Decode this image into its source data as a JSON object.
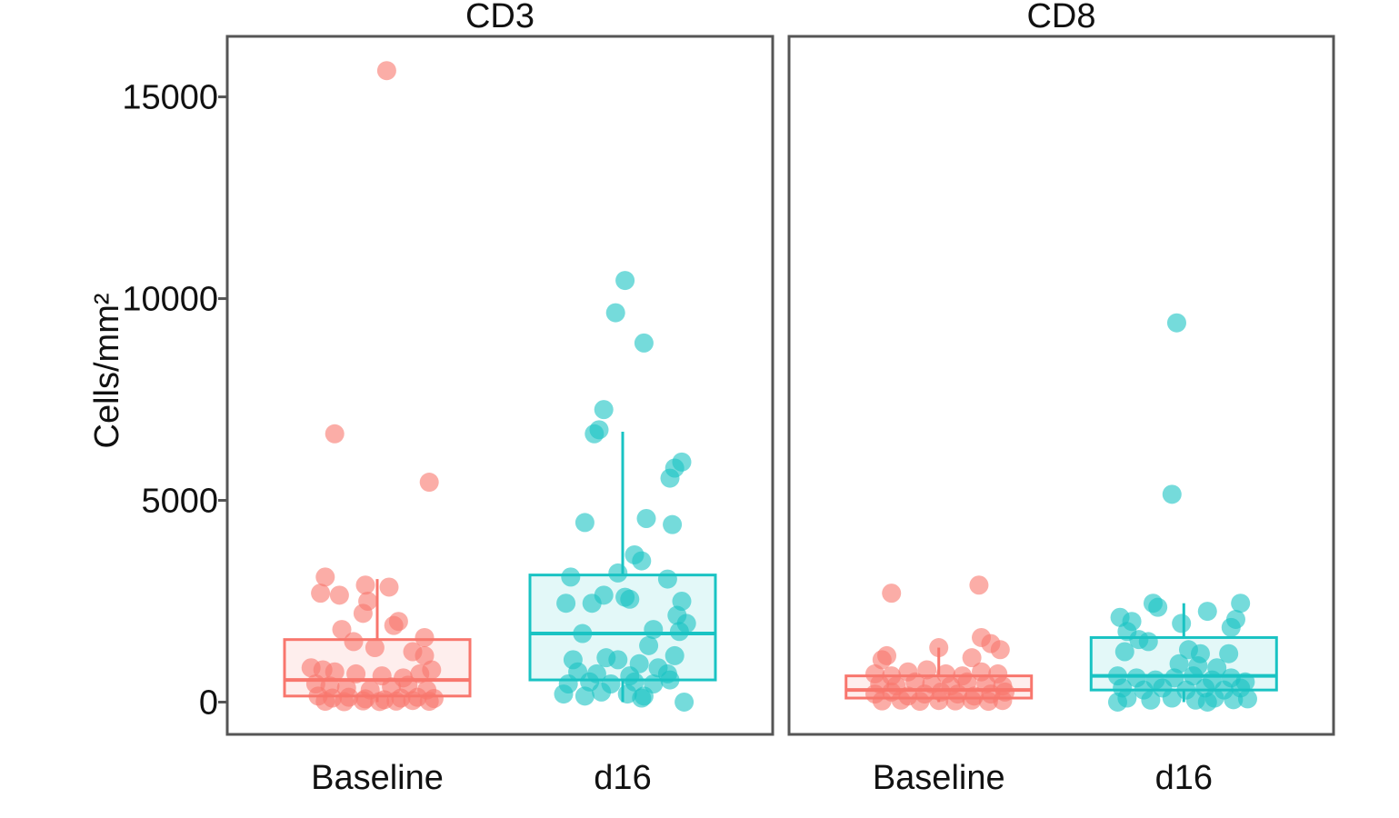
{
  "chart_data": {
    "type": "box",
    "ylabel": "Cells/mm²",
    "ylim": [
      -800,
      16500
    ],
    "yticks": [
      0,
      5000,
      10000,
      15000
    ],
    "ytick_labels": [
      "0",
      "5000",
      "10000",
      "15000"
    ],
    "categories": [
      "Baseline",
      "d16"
    ],
    "colors": {
      "Baseline": "#f8766d",
      "d16": "#19c3c3"
    },
    "panels": [
      {
        "title": "CD3",
        "groups": [
          {
            "name": "Baseline",
            "box": {
              "q1": 150,
              "median": 550,
              "q3": 1550,
              "whisker_low": 0,
              "whisker_high": 3050
            },
            "points": [
              {
                "x": 0.04,
                "y": 15650
              },
              {
                "x": -0.18,
                "y": 6650
              },
              {
                "x": 0.22,
                "y": 5450
              },
              {
                "x": -0.22,
                "y": 3100
              },
              {
                "x": -0.24,
                "y": 2700
              },
              {
                "x": -0.16,
                "y": 2650
              },
              {
                "x": -0.05,
                "y": 2900
              },
              {
                "x": 0.05,
                "y": 2850
              },
              {
                "x": -0.04,
                "y": 2500
              },
              {
                "x": -0.06,
                "y": 2200
              },
              {
                "x": 0.07,
                "y": 1900
              },
              {
                "x": 0.09,
                "y": 2000
              },
              {
                "x": -0.15,
                "y": 1800
              },
              {
                "x": 0.2,
                "y": 1600
              },
              {
                "x": -0.1,
                "y": 1500
              },
              {
                "x": -0.01,
                "y": 1350
              },
              {
                "x": 0.15,
                "y": 1250
              },
              {
                "x": 0.2,
                "y": 1150
              },
              {
                "x": -0.28,
                "y": 850
              },
              {
                "x": -0.23,
                "y": 800
              },
              {
                "x": -0.18,
                "y": 750
              },
              {
                "x": -0.09,
                "y": 700
              },
              {
                "x": 0.02,
                "y": 650
              },
              {
                "x": 0.11,
                "y": 600
              },
              {
                "x": 0.18,
                "y": 700
              },
              {
                "x": 0.23,
                "y": 800
              },
              {
                "x": -0.26,
                "y": 450
              },
              {
                "x": -0.2,
                "y": 400
              },
              {
                "x": -0.13,
                "y": 350
              },
              {
                "x": -0.03,
                "y": 300
              },
              {
                "x": 0.06,
                "y": 380
              },
              {
                "x": 0.13,
                "y": 420
              },
              {
                "x": 0.21,
                "y": 300
              },
              {
                "x": -0.25,
                "y": 150
              },
              {
                "x": -0.19,
                "y": 100
              },
              {
                "x": -0.12,
                "y": 120
              },
              {
                "x": -0.05,
                "y": 80
              },
              {
                "x": 0.03,
                "y": 60
              },
              {
                "x": 0.1,
                "y": 100
              },
              {
                "x": 0.17,
                "y": 120
              },
              {
                "x": 0.24,
                "y": 90
              },
              {
                "x": -0.22,
                "y": 20
              },
              {
                "x": -0.14,
                "y": 10
              },
              {
                "x": -0.06,
                "y": 30
              },
              {
                "x": 0.01,
                "y": 15
              },
              {
                "x": 0.08,
                "y": 25
              },
              {
                "x": 0.15,
                "y": 40
              },
              {
                "x": 0.22,
                "y": 20
              }
            ]
          },
          {
            "name": "d16",
            "box": {
              "q1": 550,
              "median": 1700,
              "q3": 3150,
              "whisker_low": 0,
              "whisker_high": 6700
            },
            "points": [
              {
                "x": 0.01,
                "y": 10450
              },
              {
                "x": -0.03,
                "y": 9650
              },
              {
                "x": 0.09,
                "y": 8900
              },
              {
                "x": -0.08,
                "y": 7250
              },
              {
                "x": -0.12,
                "y": 6650
              },
              {
                "x": -0.1,
                "y": 6750
              },
              {
                "x": 0.25,
                "y": 5950
              },
              {
                "x": 0.22,
                "y": 5800
              },
              {
                "x": 0.2,
                "y": 5550
              },
              {
                "x": -0.16,
                "y": 4450
              },
              {
                "x": 0.1,
                "y": 4550
              },
              {
                "x": 0.21,
                "y": 4400
              },
              {
                "x": 0.05,
                "y": 3650
              },
              {
                "x": 0.08,
                "y": 3500
              },
              {
                "x": -0.02,
                "y": 3200
              },
              {
                "x": -0.22,
                "y": 3100
              },
              {
                "x": 0.19,
                "y": 3050
              },
              {
                "x": -0.08,
                "y": 2650
              },
              {
                "x": 0.01,
                "y": 2600
              },
              {
                "x": 0.03,
                "y": 2550
              },
              {
                "x": 0.25,
                "y": 2500
              },
              {
                "x": -0.24,
                "y": 2450
              },
              {
                "x": -0.13,
                "y": 2450
              },
              {
                "x": 0.23,
                "y": 2150
              },
              {
                "x": 0.27,
                "y": 1950
              },
              {
                "x": 0.24,
                "y": 1750
              },
              {
                "x": -0.17,
                "y": 1700
              },
              {
                "x": 0.13,
                "y": 1800
              },
              {
                "x": 0.11,
                "y": 1400
              },
              {
                "x": 0.22,
                "y": 1150
              },
              {
                "x": -0.21,
                "y": 1050
              },
              {
                "x": -0.07,
                "y": 1100
              },
              {
                "x": -0.02,
                "y": 1050
              },
              {
                "x": 0.07,
                "y": 950
              },
              {
                "x": 0.15,
                "y": 850
              },
              {
                "x": -0.19,
                "y": 750
              },
              {
                "x": -0.11,
                "y": 700
              },
              {
                "x": 0.03,
                "y": 650
              },
              {
                "x": 0.19,
                "y": 700
              },
              {
                "x": -0.23,
                "y": 450
              },
              {
                "x": -0.14,
                "y": 500
              },
              {
                "x": -0.05,
                "y": 450
              },
              {
                "x": 0.05,
                "y": 500
              },
              {
                "x": 0.13,
                "y": 450
              },
              {
                "x": 0.2,
                "y": 550
              },
              {
                "x": -0.25,
                "y": 200
              },
              {
                "x": -0.16,
                "y": 150
              },
              {
                "x": -0.09,
                "y": 250
              },
              {
                "x": 0.02,
                "y": 200
              },
              {
                "x": 0.09,
                "y": 150
              },
              {
                "x": 0.26,
                "y": 0
              },
              {
                "x": 0.08,
                "y": 100
              }
            ]
          }
        ]
      },
      {
        "title": "CD8",
        "groups": [
          {
            "name": "Baseline",
            "box": {
              "q1": 100,
              "median": 300,
              "q3": 650,
              "whisker_low": 0,
              "whisker_high": 1350
            },
            "points": [
              {
                "x": -0.2,
                "y": 2700
              },
              {
                "x": 0.17,
                "y": 2900
              },
              {
                "x": 0.18,
                "y": 1600
              },
              {
                "x": 0.22,
                "y": 1450
              },
              {
                "x": 0.26,
                "y": 1300
              },
              {
                "x": 0.0,
                "y": 1350
              },
              {
                "x": -0.22,
                "y": 1150
              },
              {
                "x": -0.24,
                "y": 1050
              },
              {
                "x": 0.14,
                "y": 1100
              },
              {
                "x": -0.27,
                "y": 700
              },
              {
                "x": -0.2,
                "y": 650
              },
              {
                "x": -0.13,
                "y": 750
              },
              {
                "x": -0.05,
                "y": 800
              },
              {
                "x": 0.03,
                "y": 700
              },
              {
                "x": 0.1,
                "y": 650
              },
              {
                "x": 0.18,
                "y": 750
              },
              {
                "x": 0.25,
                "y": 700
              },
              {
                "x": -0.25,
                "y": 450
              },
              {
                "x": -0.18,
                "y": 400
              },
              {
                "x": -0.1,
                "y": 500
              },
              {
                "x": -0.03,
                "y": 450
              },
              {
                "x": 0.05,
                "y": 400
              },
              {
                "x": 0.12,
                "y": 500
              },
              {
                "x": 0.2,
                "y": 450
              },
              {
                "x": 0.27,
                "y": 400
              },
              {
                "x": -0.27,
                "y": 200
              },
              {
                "x": -0.2,
                "y": 250
              },
              {
                "x": -0.13,
                "y": 150
              },
              {
                "x": -0.06,
                "y": 200
              },
              {
                "x": 0.01,
                "y": 250
              },
              {
                "x": 0.08,
                "y": 200
              },
              {
                "x": 0.15,
                "y": 150
              },
              {
                "x": 0.22,
                "y": 200
              },
              {
                "x": 0.28,
                "y": 250
              },
              {
                "x": -0.24,
                "y": 30
              },
              {
                "x": -0.16,
                "y": 50
              },
              {
                "x": -0.08,
                "y": 20
              },
              {
                "x": 0.0,
                "y": 40
              },
              {
                "x": 0.07,
                "y": 30
              },
              {
                "x": 0.14,
                "y": 50
              },
              {
                "x": 0.21,
                "y": 20
              },
              {
                "x": 0.27,
                "y": 40
              }
            ]
          },
          {
            "name": "d16",
            "box": {
              "q1": 300,
              "median": 650,
              "q3": 1600,
              "whisker_low": 0,
              "whisker_high": 2450
            },
            "points": [
              {
                "x": -0.03,
                "y": 9400
              },
              {
                "x": -0.05,
                "y": 5150
              },
              {
                "x": 0.1,
                "y": 2250
              },
              {
                "x": -0.13,
                "y": 2450
              },
              {
                "x": -0.11,
                "y": 2350
              },
              {
                "x": 0.24,
                "y": 2450
              },
              {
                "x": -0.27,
                "y": 2100
              },
              {
                "x": -0.22,
                "y": 2000
              },
              {
                "x": 0.22,
                "y": 2050
              },
              {
                "x": -0.01,
                "y": 1950
              },
              {
                "x": 0.2,
                "y": 1850
              },
              {
                "x": -0.24,
                "y": 1750
              },
              {
                "x": -0.19,
                "y": 1550
              },
              {
                "x": -0.15,
                "y": 1500
              },
              {
                "x": 0.02,
                "y": 1300
              },
              {
                "x": -0.25,
                "y": 1250
              },
              {
                "x": 0.07,
                "y": 1200
              },
              {
                "x": 0.19,
                "y": 1200
              },
              {
                "x": -0.02,
                "y": 950
              },
              {
                "x": 0.06,
                "y": 900
              },
              {
                "x": 0.14,
                "y": 850
              },
              {
                "x": -0.28,
                "y": 650
              },
              {
                "x": -0.2,
                "y": 600
              },
              {
                "x": -0.12,
                "y": 550
              },
              {
                "x": -0.04,
                "y": 600
              },
              {
                "x": 0.04,
                "y": 650
              },
              {
                "x": 0.12,
                "y": 550
              },
              {
                "x": 0.2,
                "y": 600
              },
              {
                "x": 0.26,
                "y": 500
              },
              {
                "x": -0.26,
                "y": 350
              },
              {
                "x": -0.17,
                "y": 300
              },
              {
                "x": -0.09,
                "y": 350
              },
              {
                "x": 0.01,
                "y": 300
              },
              {
                "x": 0.09,
                "y": 350
              },
              {
                "x": 0.17,
                "y": 300
              },
              {
                "x": 0.24,
                "y": 350
              },
              {
                "x": -0.24,
                "y": 100
              },
              {
                "x": -0.14,
                "y": 50
              },
              {
                "x": -0.05,
                "y": 100
              },
              {
                "x": 0.05,
                "y": 50
              },
              {
                "x": 0.13,
                "y": 100
              },
              {
                "x": 0.21,
                "y": 60
              },
              {
                "x": 0.27,
                "y": 80
              },
              {
                "x": -0.28,
                "y": 0
              },
              {
                "x": 0.1,
                "y": 0
              }
            ]
          }
        ]
      }
    ]
  }
}
